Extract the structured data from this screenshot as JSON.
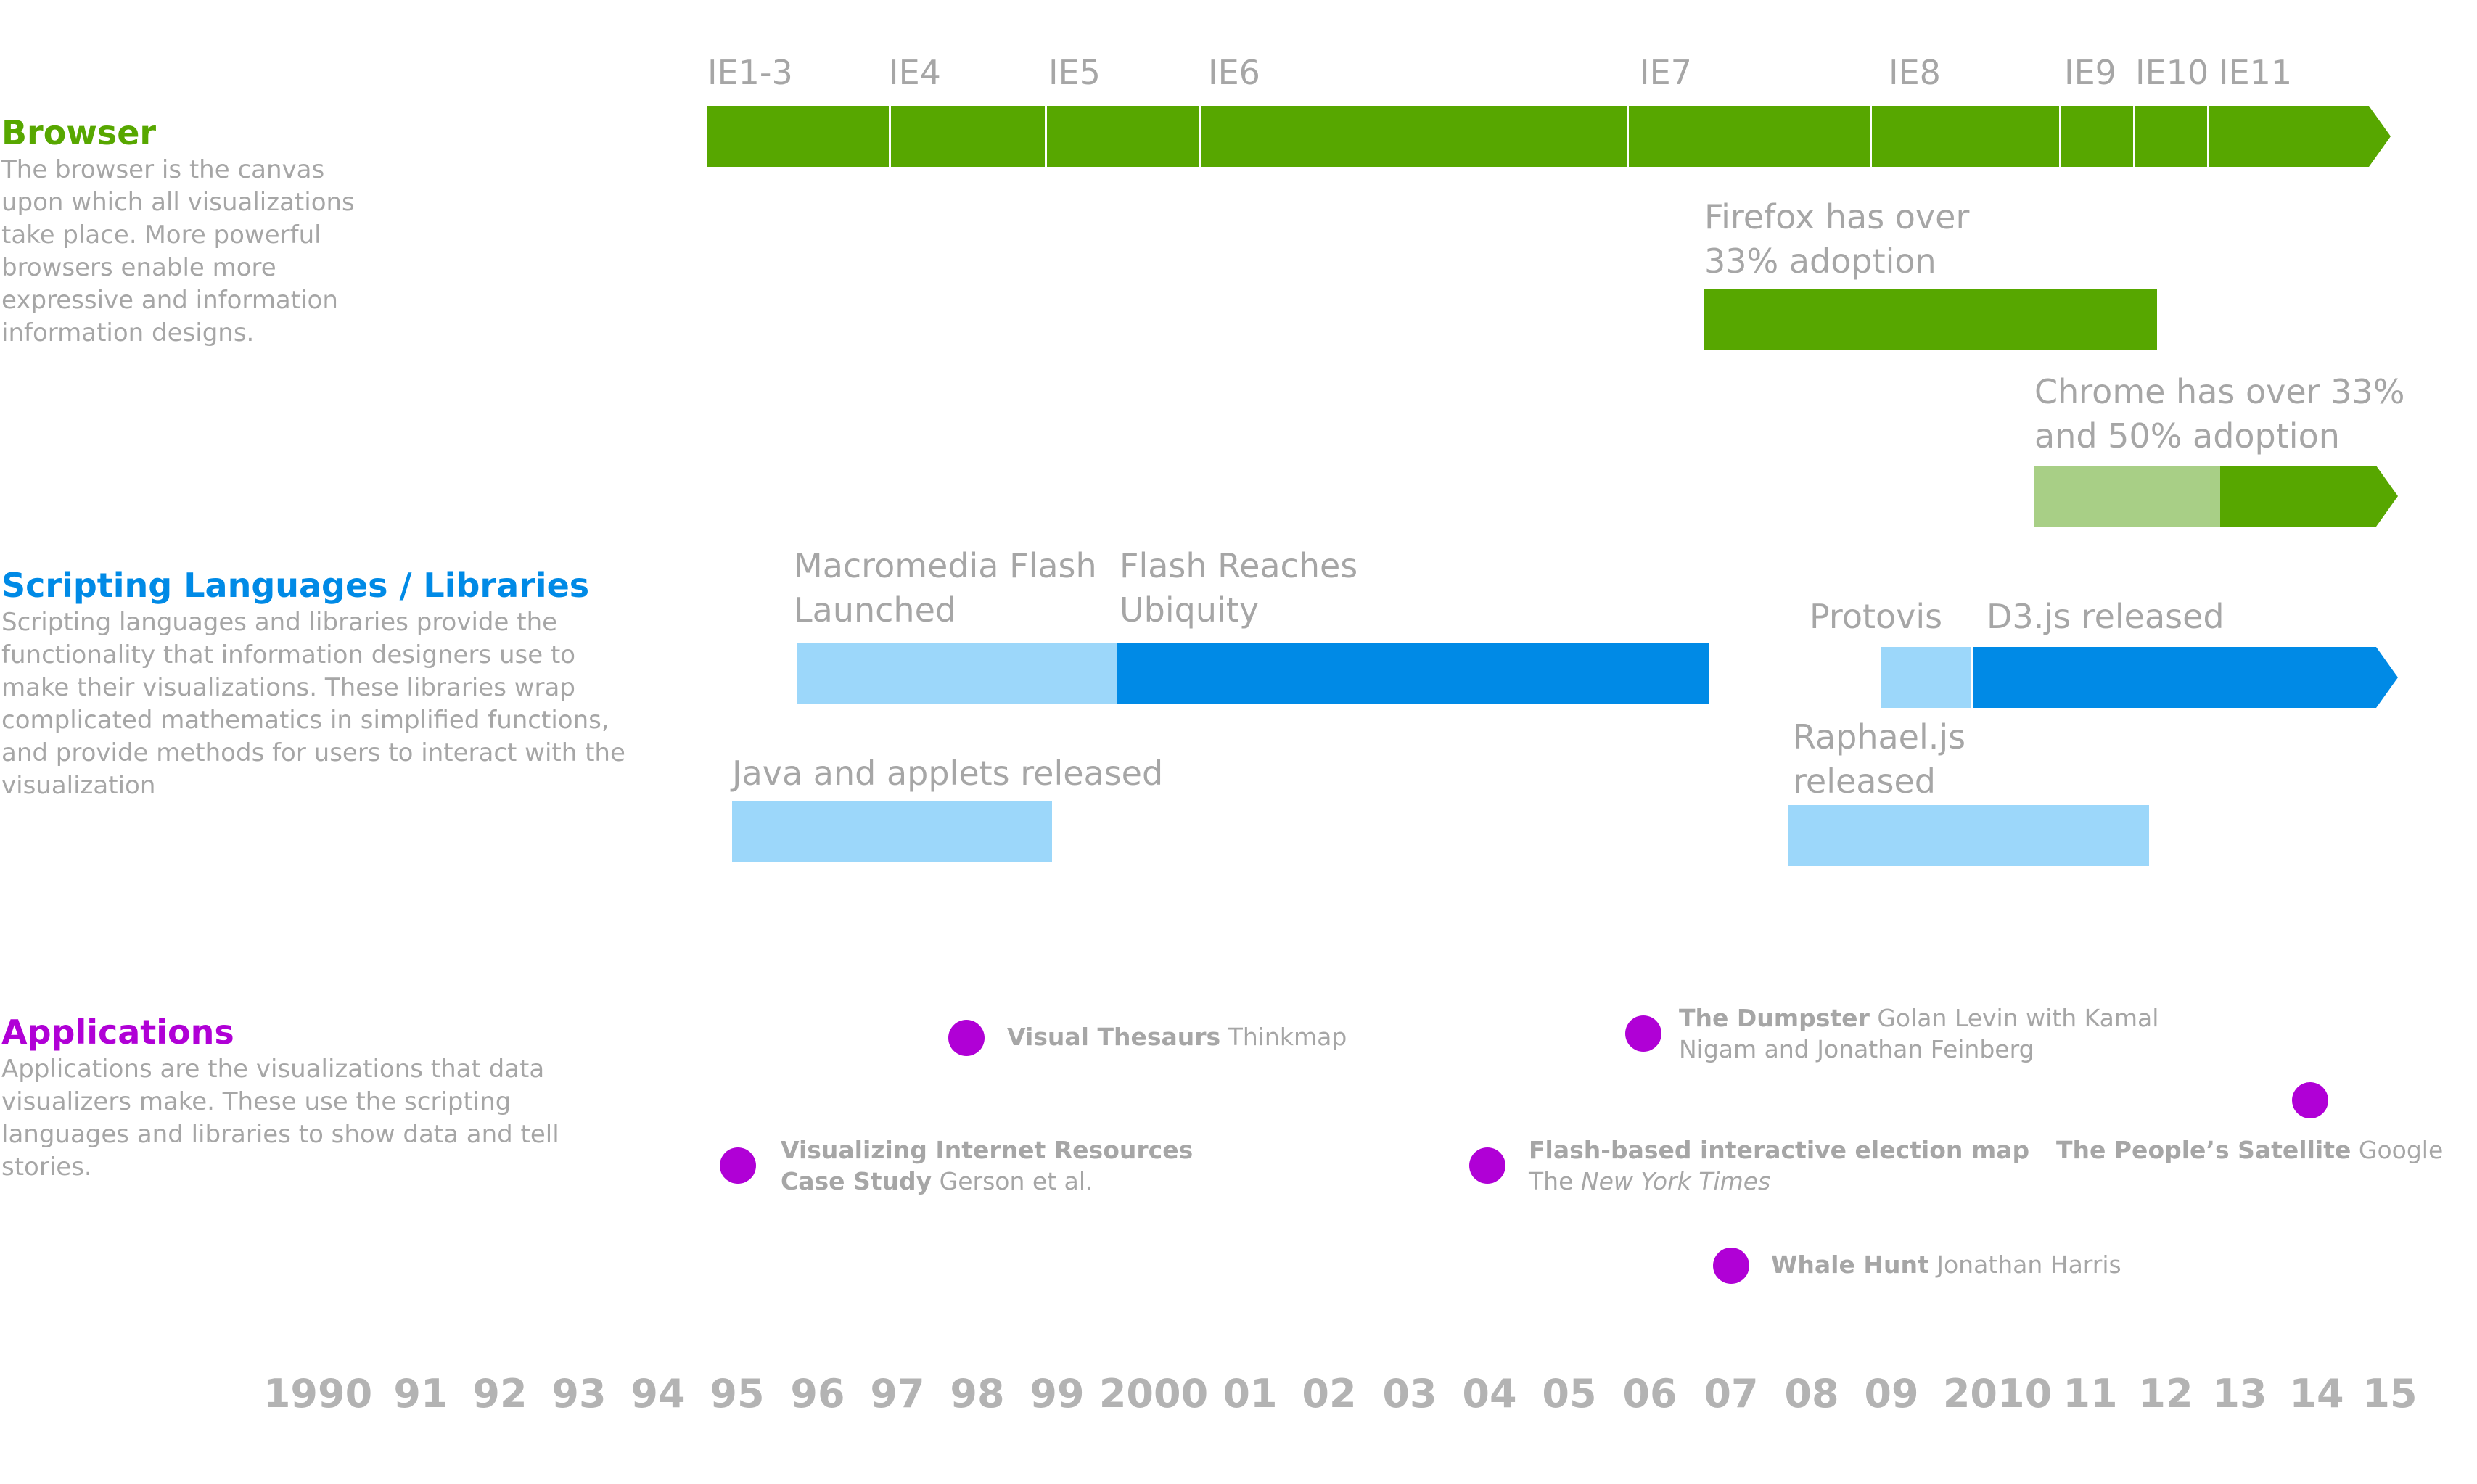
{
  "colors": {
    "browser": "#57a700",
    "browser_light": "#a8cf86",
    "scripting": "#008ae6",
    "scripting_light": "#9cd7fa",
    "applications": "#b000d6",
    "muted_text": "#a6a6a6"
  },
  "sections": {
    "browser": {
      "title": "Browser",
      "description": "The browser is the canvas upon which all visualizations take place. More powerful browsers enable more expressive and information information designs."
    },
    "scripting": {
      "title": "Scripting Languages / Libraries",
      "description": "Scripting languages and libraries provide the functionality that information designers use to make their visualizations. These libraries wrap complicated mathematics in simplified functions, and provide methods for users to interact with the visualization"
    },
    "applications": {
      "title": "Applications",
      "description": "Applications are the visualizations that data visualizers make. These use the scripting languages and libraries to show data and tell stories."
    }
  },
  "ie_versions": [
    "IE1-3",
    "IE4",
    "IE5",
    "IE6",
    "IE7",
    "IE8",
    "IE9",
    "IE10",
    "IE11"
  ],
  "browser_events": {
    "firefox": "Firefox has over 33% adoption",
    "chrome": "Chrome has over 33% and 50% adoption"
  },
  "scripting_events": {
    "flash_launched": "Macromedia Flash Launched",
    "flash_ubiquity": "Flash Reaches Ubiquity",
    "java": "Java and applets released",
    "protovis": "Protovis",
    "d3": "D3.js released",
    "raphael": "Raphael.js released"
  },
  "applications": [
    {
      "title": "Visual Thesaurs",
      "author": "Thinkmap"
    },
    {
      "title": "Visualizing Internet Resources Case Study",
      "author": "Gerson et al."
    },
    {
      "title": "The Dumpster",
      "author": "Golan Levin with Kamal Nigam and Jonathan Feinberg"
    },
    {
      "title": "Flash-based interactive election map",
      "author_prefix": "The",
      "author_italic": "New York Times"
    },
    {
      "title": "Whale Hunt",
      "author": "Jonathan Harris"
    },
    {
      "title": "The People’s Satellite",
      "author": "Google"
    }
  ],
  "axis_years": [
    "1990",
    "91",
    "92",
    "93",
    "94",
    "95",
    "96",
    "97",
    "98",
    "99",
    "2000",
    "01",
    "02",
    "03",
    "04",
    "05",
    "06",
    "07",
    "08",
    "09",
    "2010",
    "11",
    "12",
    "13",
    "14",
    "15"
  ]
}
